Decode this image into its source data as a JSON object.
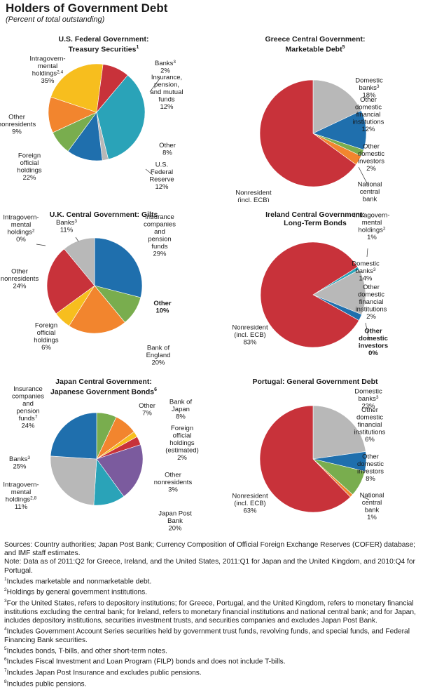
{
  "title": "Holders of Government Debt",
  "subtitle": "(Percent of total outstanding)",
  "chart_data": [
    {
      "type": "pie",
      "title_lines": [
        "U.S. Federal Government:",
        "Treasury Securities"
      ],
      "title_sup": "1",
      "series": [
        {
          "name": "Intragovernmental holdings",
          "sup": "2,4",
          "value": 35,
          "color": "#2aa3b8"
        },
        {
          "name": "Banks",
          "sup": "3",
          "value": 2,
          "color": "#b8b8b8"
        },
        {
          "name": "Insurance, pension, and mutual funds",
          "value": 12,
          "color": "#1f6fad"
        },
        {
          "name": "Other",
          "value": 8,
          "color": "#79ad4e"
        },
        {
          "name": "U.S. Federal Reserve",
          "value": 12,
          "color": "#f2852e"
        },
        {
          "name": "Foreign official holdings",
          "value": 22,
          "color": "#f7be1e"
        },
        {
          "name": "Other nonresidents",
          "value": 9,
          "color": "#c8323a"
        }
      ]
    },
    {
      "type": "pie",
      "title_lines": [
        "Greece Central Government:",
        "Marketable Debt"
      ],
      "title_sup": "5",
      "series": [
        {
          "name": "Domestic banks",
          "sup": "3",
          "value": 18,
          "color": "#b8b8b8"
        },
        {
          "name": "Other domestic financial institutions",
          "value": 12,
          "color": "#1f6fad"
        },
        {
          "name": "Other domestic investors",
          "value": 2,
          "color": "#79ad4e"
        },
        {
          "name": "National central bank",
          "value": 3,
          "color": "#f2852e"
        },
        {
          "name": "Nonresident (incl. ECB)",
          "value": 65,
          "color": "#c8323a"
        }
      ]
    },
    {
      "type": "pie",
      "title_lines": [
        "U.K. Central Government: Gilts"
      ],
      "series": [
        {
          "name": "Intragovernmental holdings",
          "sup": "2",
          "value": 0,
          "color": "#2aa3b8"
        },
        {
          "name": "Insurance companies and pension funds",
          "value": 29,
          "color": "#1f6fad"
        },
        {
          "name": "Other",
          "value": 10,
          "color": "#79ad4e"
        },
        {
          "name": "Bank of England",
          "value": 20,
          "color": "#f2852e"
        },
        {
          "name": "Foreign official holdings",
          "value": 6,
          "color": "#f7be1e"
        },
        {
          "name": "Other nonresidents",
          "value": 24,
          "color": "#c8323a"
        },
        {
          "name": "Banks",
          "sup": "3",
          "value": 11,
          "color": "#b8b8b8"
        }
      ]
    },
    {
      "type": "pie",
      "title_lines": [
        "Ireland Central Government:",
        "Long-Term Bonds"
      ],
      "series": [
        {
          "name": "Intragovernmental holdings",
          "sup": "2",
          "value": 1,
          "color": "#2aa3b8"
        },
        {
          "name": "Domestic banks",
          "sup": "3",
          "value": 14,
          "color": "#b8b8b8"
        },
        {
          "name": "Other domestic financial institutions",
          "value": 2,
          "color": "#1f6fad"
        },
        {
          "name": "Other domestic investors",
          "value": 0,
          "color": "#79ad4e"
        },
        {
          "name": "Nonresident (incl. ECB)",
          "value": 83,
          "color": "#c8323a"
        }
      ]
    },
    {
      "type": "pie",
      "title_lines": [
        "Japan Central Government:",
        "Japanese Government Bonds"
      ],
      "title_sup": "6",
      "series": [
        {
          "name": "Other",
          "value": 7,
          "color": "#79ad4e"
        },
        {
          "name": "Bank of Japan",
          "value": 8,
          "color": "#f2852e"
        },
        {
          "name": "Foreign official holdings (estimated)",
          "value": 2,
          "color": "#f7be1e"
        },
        {
          "name": "Other nonresidents",
          "value": 3,
          "color": "#c8323a"
        },
        {
          "name": "Japan Post Bank",
          "value": 20,
          "color": "#7b5b9e"
        },
        {
          "name": "Intragovernmental holdings",
          "sup": "2,8",
          "value": 11,
          "color": "#2aa3b8"
        },
        {
          "name": "Banks",
          "sup": "3",
          "value": 25,
          "color": "#b8b8b8"
        },
        {
          "name": "Insurance companies and pension funds",
          "sup": "7",
          "value": 24,
          "color": "#1f6fad"
        }
      ]
    },
    {
      "type": "pie",
      "title_lines": [
        "Portugal: General Government Debt"
      ],
      "series": [
        {
          "name": "Domestic banks",
          "sup": "3",
          "value": 23,
          "color": "#b8b8b8"
        },
        {
          "name": "Other domestic financial institutions",
          "value": 6,
          "color": "#1f6fad"
        },
        {
          "name": "Other domestic investors",
          "value": 8,
          "color": "#79ad4e"
        },
        {
          "name": "National central bank",
          "value": 1,
          "color": "#f2852e"
        },
        {
          "name": "Nonresident (incl. ECB)",
          "value": 63,
          "color": "#c8323a"
        }
      ]
    }
  ],
  "notes": {
    "sources": "Sources: Country authorities; Japan Post Bank; Currency Composition of Official Foreign Exchange Reserves (COFER) database; and IMF staff estimates.",
    "note": "Note: Data as of 2011:Q2 for Greece, Ireland, and the United States, 2011:Q1 for Japan and the United Kingdom, and 2010:Q4 for Portugal.",
    "footnotes": [
      {
        "num": "1",
        "text": "Includes marketable and nonmarketable debt."
      },
      {
        "num": "2",
        "text": "Holdings by general government institutions."
      },
      {
        "num": "3",
        "text": "For the United States, refers to depository institutions; for Greece, Portugal, and the United Kingdom, refers to monetary financial institutions excluding the central bank; for  Ireland, refers to monetary financial institutions and national central bank; and for Japan, includes depository institutions, securities investment trusts, and securities companies and excludes Japan Post Bank."
      },
      {
        "num": "4",
        "text": "Includes Government Account Series securities held by government trust funds, revolving funds, and special funds, and Federal Financing Bank securities."
      },
      {
        "num": "5",
        "text": "Includes bonds, T-bills, and other short-term notes."
      },
      {
        "num": "6",
        "text": "Includes Fiscal Investment and Loan Program (FILP) bonds and does not include T-bills."
      },
      {
        "num": "7",
        "text": "Includes Japan Post Insurance and excludes public pensions."
      },
      {
        "num": "8",
        "text": "Includes public pensions."
      }
    ]
  }
}
